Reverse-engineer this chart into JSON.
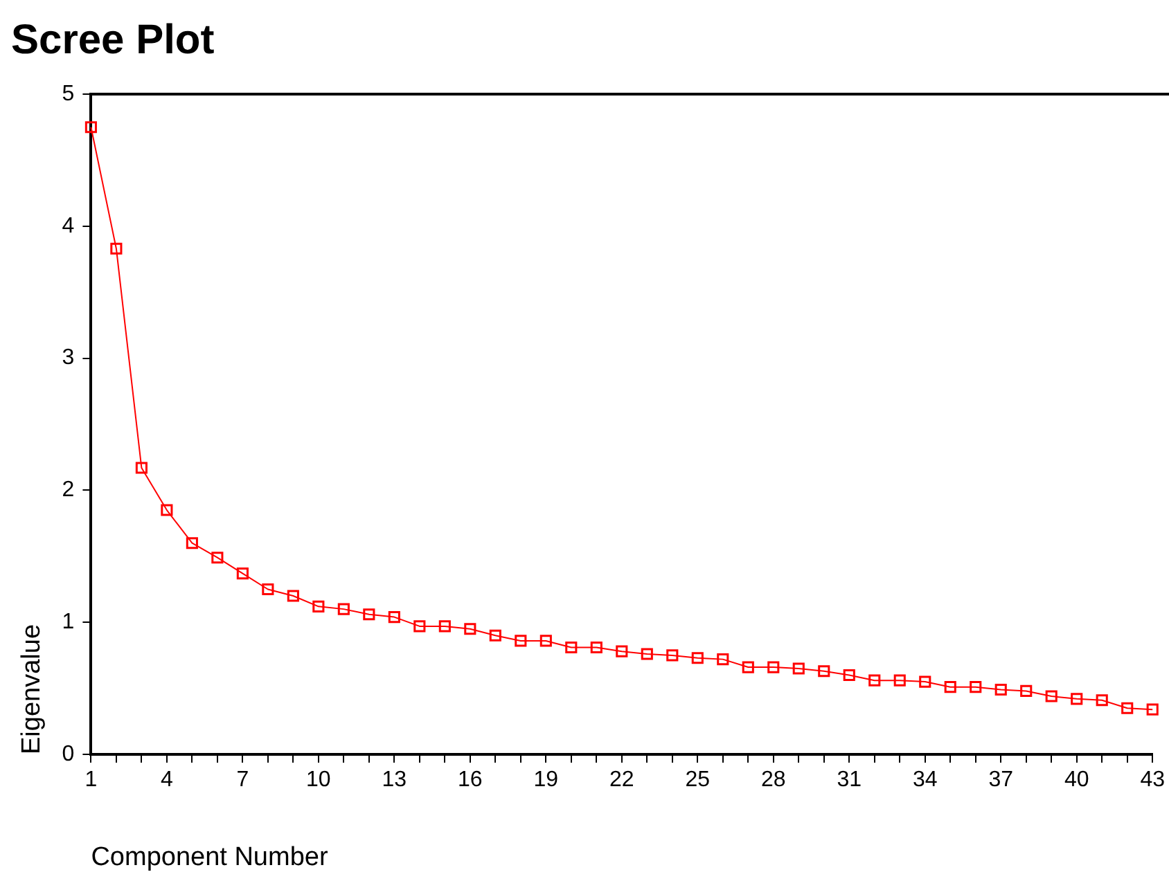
{
  "chart_data": {
    "type": "line",
    "title": "Scree Plot",
    "xlabel": "Component Number",
    "ylabel": "Eigenvalue",
    "categories": [
      "1",
      null,
      null,
      "4",
      null,
      null,
      "7",
      null,
      null,
      "10",
      null,
      null,
      "13",
      null,
      null,
      "16",
      null,
      null,
      "19",
      null,
      null,
      "22",
      null,
      null,
      "25",
      null,
      null,
      "28",
      null,
      null,
      "31",
      null,
      null,
      "34",
      null,
      null,
      "37",
      null,
      null,
      "40",
      null,
      null,
      "43"
    ],
    "series": [
      {
        "color": "#ff0000",
        "values": [
          4.75,
          3.83,
          2.17,
          1.85,
          1.6,
          1.49,
          1.37,
          1.25,
          1.2,
          1.12,
          1.1,
          1.06,
          1.04,
          0.97,
          0.97,
          0.95,
          0.9,
          0.86,
          0.86,
          0.81,
          0.81,
          0.78,
          0.76,
          0.75,
          0.73,
          0.72,
          0.66,
          0.66,
          0.65,
          0.63,
          0.6,
          0.56,
          0.56,
          0.55,
          0.51,
          0.51,
          0.49,
          0.48,
          0.44,
          0.42,
          0.41,
          0.35,
          0.34
        ]
      }
    ],
    "ylim": [
      0,
      5
    ],
    "yticks": [
      0,
      1,
      2,
      3,
      4,
      5
    ],
    "grid": false,
    "legend": false,
    "marker": "square",
    "line_style": "solid"
  }
}
